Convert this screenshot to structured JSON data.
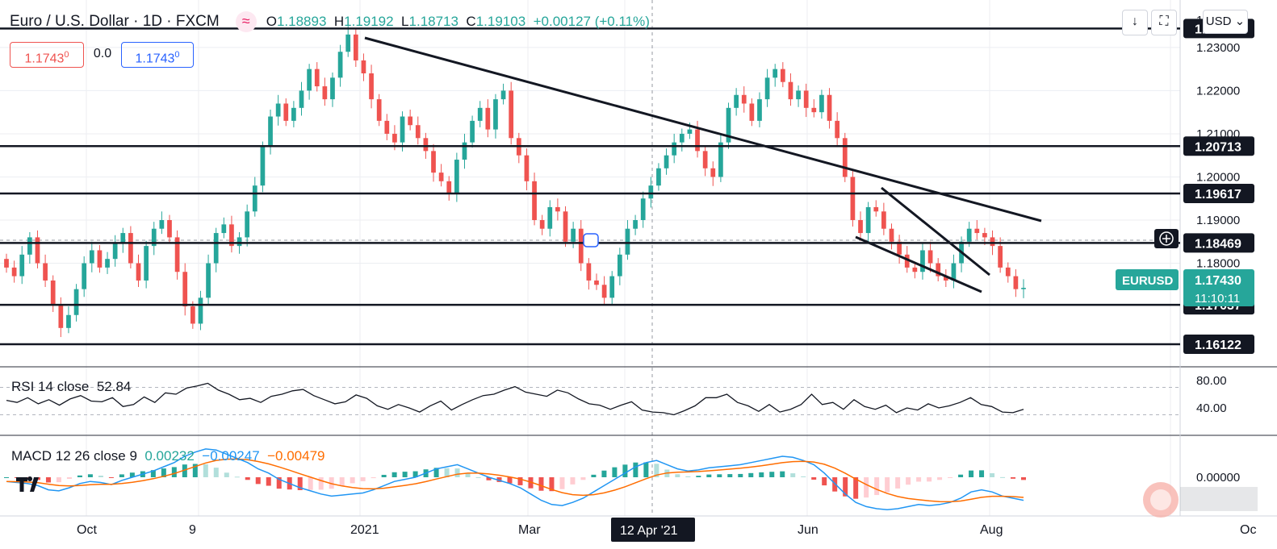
{
  "header": {
    "symbol": "Euro / U.S. Dollar · 1D · FXCM",
    "o_label": "O",
    "o_value": "1.18893",
    "h_label": "H",
    "h_value": "1.19192",
    "l_label": "L",
    "l_value": "1.18713",
    "c_label": "C",
    "c_value": "1.19103",
    "change": "+0.00127 (+0.11%)",
    "sell_price": "1.1743",
    "sell_sup": "0",
    "spread": "0.0",
    "buy_price": "1.1743",
    "buy_sup": "0",
    "wave_glyph": "≈"
  },
  "toolbar": {
    "currency": "USD",
    "down_arrow": "↓",
    "fullscreen": "⛶"
  },
  "colors": {
    "up": "#26a69a",
    "down": "#ef5350",
    "line": "#131722",
    "macd": "#2196f3",
    "signal": "#ff6d00"
  },
  "price_scale": {
    "ticks": [
      "1.23000",
      "1.22000",
      "1.21000",
      "1.20000",
      "1.19000",
      "1.18000"
    ],
    "partial_top": "1."
  },
  "level_labels": [
    "1.23438",
    "1.20713",
    "1.19617",
    "1.18469",
    "1.17037",
    "1.16122"
  ],
  "last_price": {
    "symbol": "EURUSD",
    "price": "1.17430",
    "countdown": "11:10:11"
  },
  "time_axis": {
    "labels": [
      "Oct",
      "9",
      "2021",
      "Mar",
      "Jun",
      "Aug",
      "Oc"
    ],
    "crosshair_label": "12 Apr '21"
  },
  "rsi": {
    "label": "RSI 14 close",
    "value": "52.84",
    "ticks": [
      "80.00",
      "40.00"
    ],
    "values": [
      51,
      48,
      55,
      46,
      52,
      44,
      53,
      58,
      50,
      49,
      55,
      42,
      45,
      56,
      48,
      62,
      60,
      69,
      72,
      76,
      66,
      60,
      52,
      54,
      48,
      57,
      60,
      65,
      67,
      58,
      52,
      46,
      49,
      59,
      54,
      43,
      38,
      45,
      40,
      34,
      43,
      50,
      37,
      45,
      52,
      58,
      60,
      66,
      71,
      63,
      60,
      57,
      66,
      62,
      53,
      46,
      44,
      38,
      44,
      49,
      37,
      34,
      33,
      30,
      36,
      43,
      55,
      55,
      60,
      48,
      43,
      35,
      45,
      34,
      38,
      45,
      60,
      45,
      48,
      38,
      52,
      42,
      38,
      44,
      33,
      40,
      37,
      46,
      40,
      43,
      48,
      55,
      45,
      42,
      34,
      33,
      38
    ]
  },
  "macd": {
    "label": "MACD 12 26 close 9",
    "hist_value": "0.00232",
    "macd_value": "−0.00247",
    "signal_value": "−0.00479",
    "tick": "0.00000",
    "line": [
      -4,
      -5,
      -6,
      -8,
      -12,
      -13,
      -10,
      -6,
      -4,
      -5,
      -7,
      -3,
      0,
      3,
      6,
      10,
      14,
      20,
      24,
      27,
      26,
      22,
      18,
      14,
      8,
      4,
      -2,
      -6,
      -10,
      -13,
      -16,
      -18,
      -17,
      -16,
      -15,
      -12,
      -8,
      -4,
      -2,
      0,
      4,
      8,
      10,
      12,
      8,
      4,
      0,
      -3,
      -6,
      -10,
      -16,
      -22,
      -26,
      -27,
      -24,
      -20,
      -14,
      -8,
      -2,
      4,
      10,
      14,
      16,
      12,
      8,
      6,
      7,
      9,
      10,
      11,
      12,
      14,
      16,
      18,
      20,
      19,
      16,
      12,
      4,
      -6,
      -16,
      -24,
      -28,
      -30,
      -31,
      -30,
      -28,
      -26,
      -27,
      -26,
      -24,
      -20,
      -14,
      -12,
      -14,
      -18,
      -20,
      -22
    ]
  },
  "chart_data": {
    "type": "candlestick",
    "title": "Euro / U.S. Dollar",
    "timeframe": "1D",
    "source": "FXCM",
    "ylim": [
      1.156,
      1.241
    ],
    "x_labels": [
      "Oct",
      "9",
      "2021",
      "Mar",
      "Jun",
      "Aug"
    ],
    "support_resistance_levels": [
      1.23438,
      1.20713,
      1.19617,
      1.18469,
      1.17037,
      1.16122
    ],
    "last_close": 1.1743,
    "closes": [
      1.179,
      1.177,
      1.182,
      1.186,
      1.18,
      1.176,
      1.1705,
      1.165,
      1.168,
      1.174,
      1.18,
      1.183,
      1.179,
      1.181,
      1.1845,
      1.187,
      1.18,
      1.176,
      1.184,
      1.188,
      1.19,
      1.186,
      1.178,
      1.17,
      1.166,
      1.172,
      1.18,
      1.187,
      1.189,
      1.184,
      1.186,
      1.192,
      1.198,
      1.207,
      1.214,
      1.217,
      1.213,
      1.216,
      1.22,
      1.225,
      1.221,
      1.218,
      1.223,
      1.229,
      1.233,
      1.227,
      1.224,
      1.218,
      1.213,
      1.21,
      1.208,
      1.214,
      1.212,
      1.209,
      1.206,
      1.201,
      1.199,
      1.196,
      1.204,
      1.208,
      1.213,
      1.216,
      1.211,
      1.218,
      1.22,
      1.209,
      1.205,
      1.199,
      1.19,
      1.188,
      1.193,
      1.192,
      1.185,
      1.188,
      1.18,
      1.176,
      1.175,
      1.172,
      1.177,
      1.182,
      1.188,
      1.19,
      1.195,
      1.198,
      1.202,
      1.205,
      1.208,
      1.21,
      1.211,
      1.206,
      1.202,
      1.2,
      1.208,
      1.216,
      1.219,
      1.217,
      1.213,
      1.218,
      1.223,
      1.225,
      1.222,
      1.218,
      1.22,
      1.216,
      1.215,
      1.219,
      1.213,
      1.209,
      1.2,
      1.19,
      1.187,
      1.193,
      1.192,
      1.188,
      1.185,
      1.182,
      1.179,
      1.178,
      1.183,
      1.18,
      1.177,
      1.176,
      1.18,
      1.185,
      1.188,
      1.187,
      1.186,
      1.184,
      1.179,
      1.177,
      1.174,
      1.1743
    ]
  }
}
